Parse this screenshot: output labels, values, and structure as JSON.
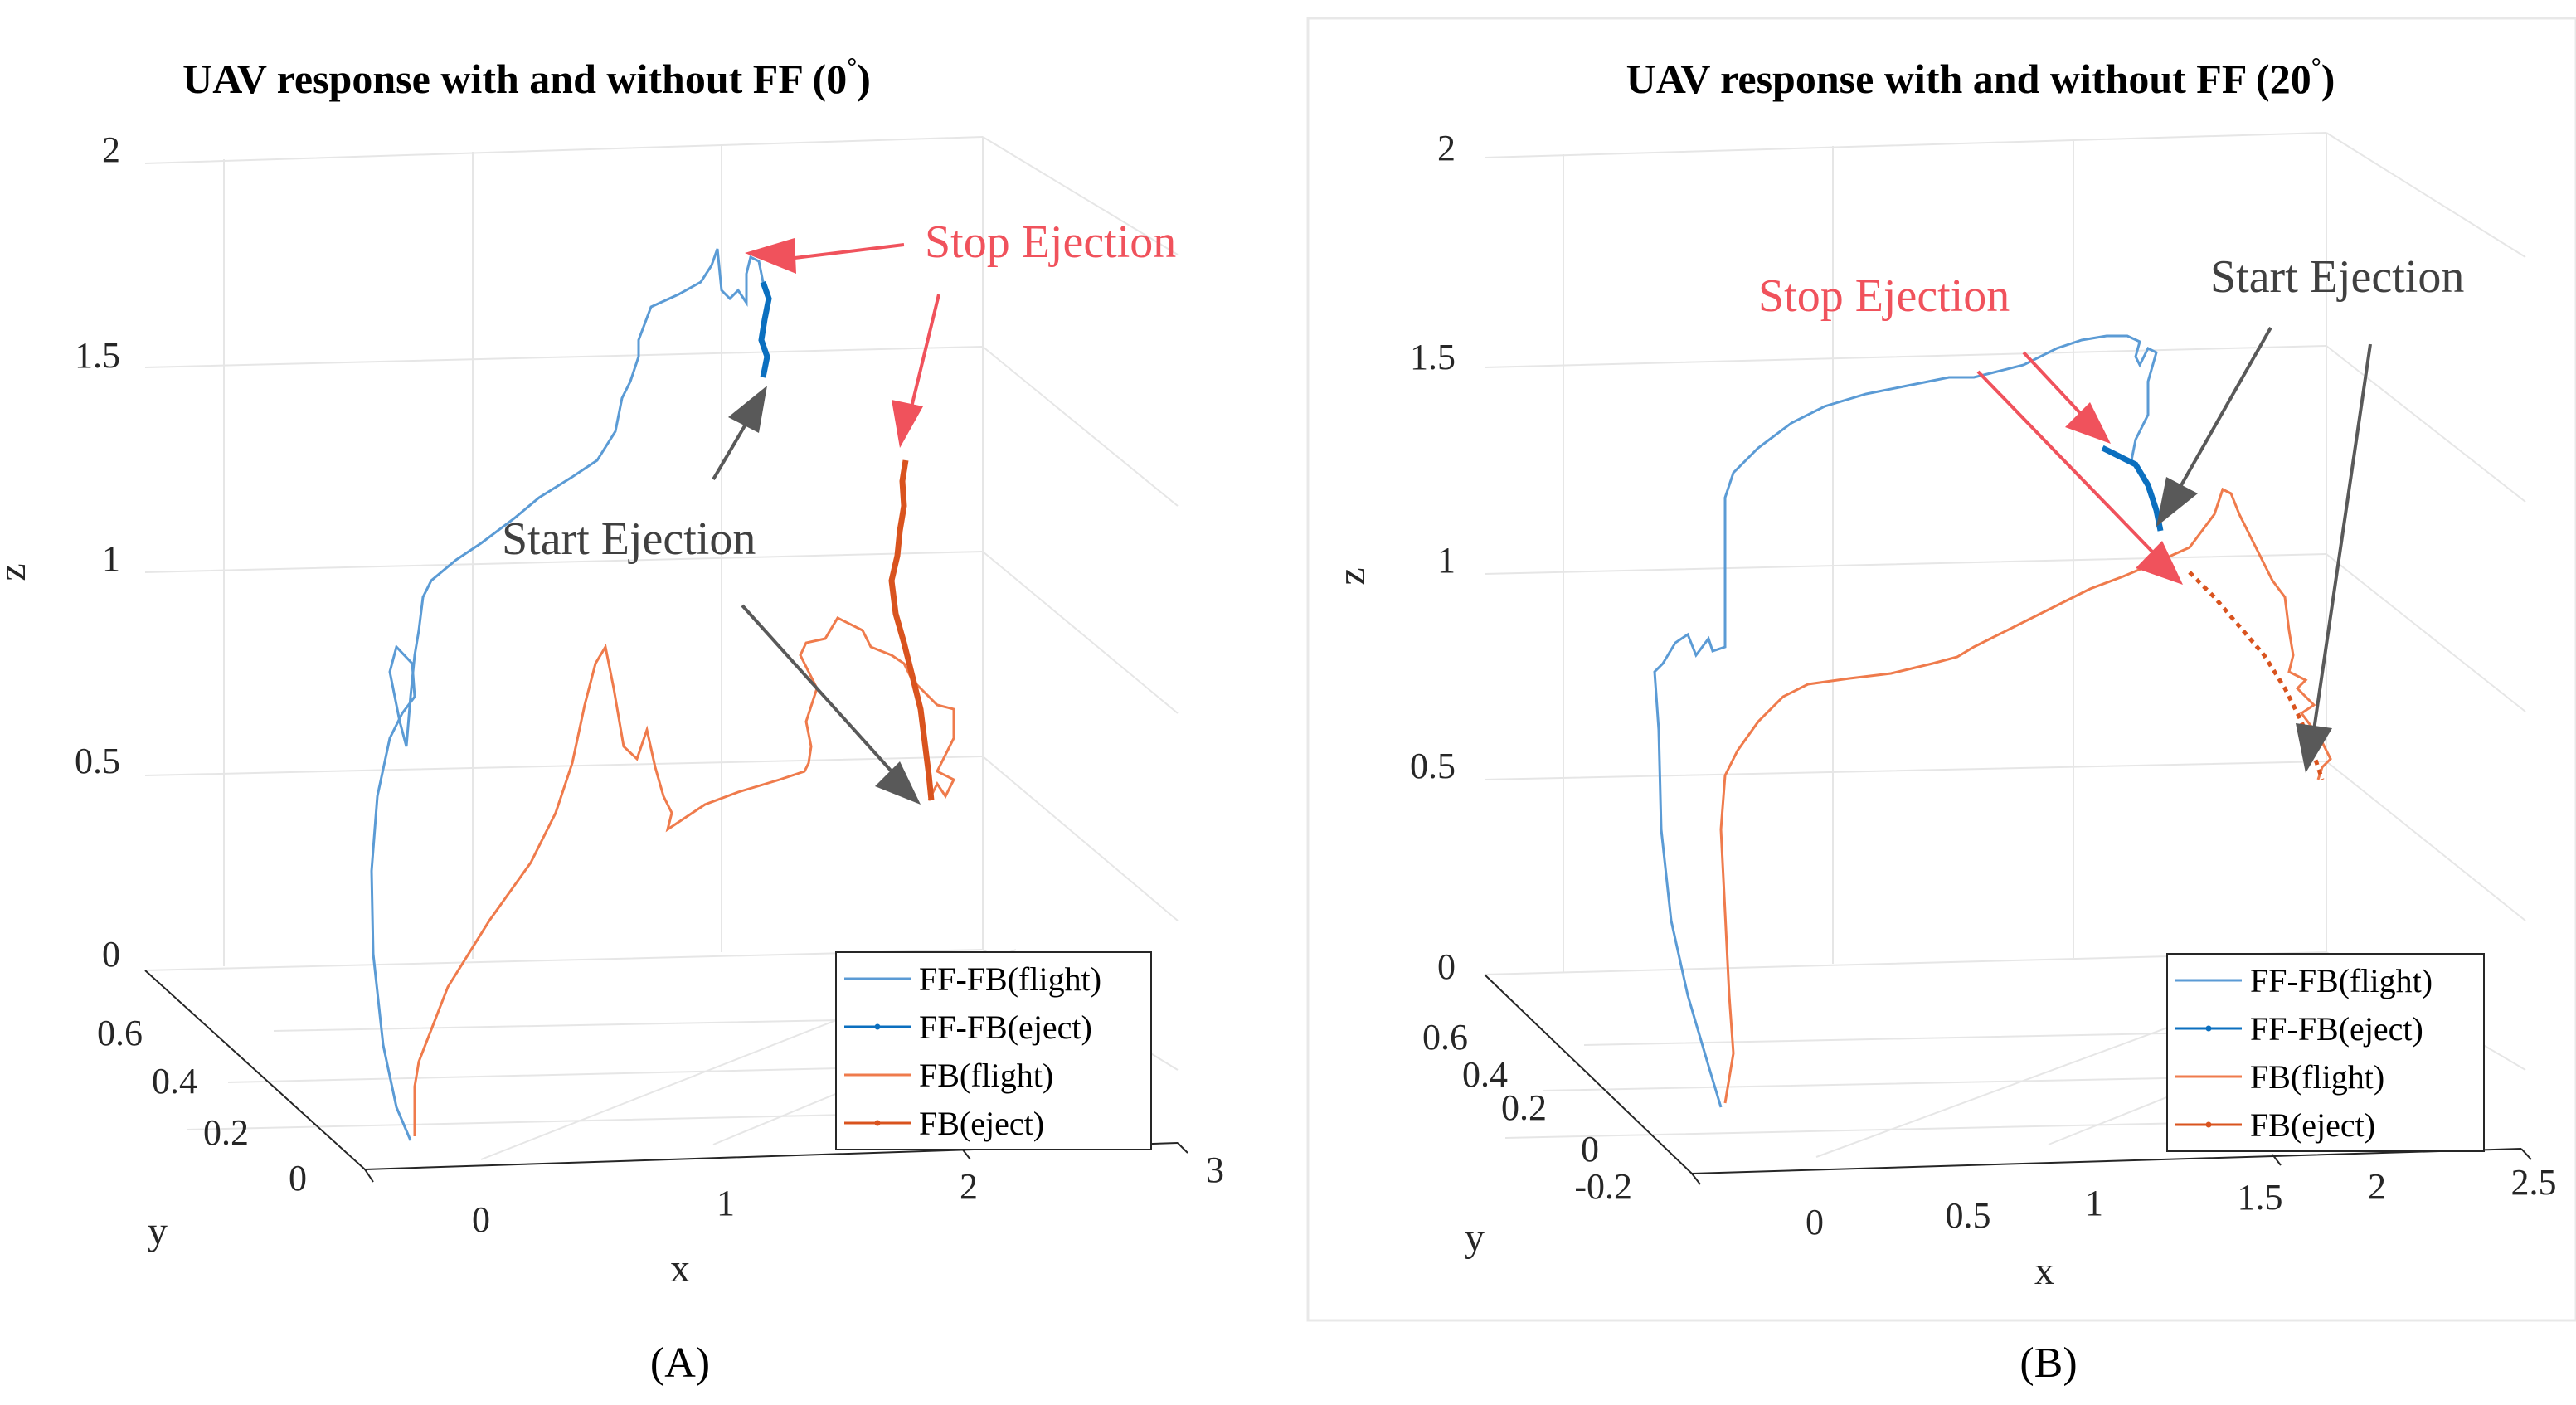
{
  "chart_data": [
    {
      "type": "line",
      "panel_label": "(A)",
      "title": "UAV response with and without FF (0°)",
      "title_main": "UAV response with and without FF (0",
      "title_sup": "°",
      "title_end": ")",
      "xlabel": "x",
      "ylabel": "y",
      "zlabel": "z",
      "xticks": [
        "0",
        "1",
        "2",
        "3"
      ],
      "yticks": [
        "0",
        "0.2",
        "0.4",
        "0.6"
      ],
      "zticks": [
        "0",
        "0.5",
        "1",
        "1.5",
        "2"
      ],
      "legend": [
        "FF-FB(flight)",
        "FF-FB(eject)",
        "FB(flight)",
        "FB(eject)"
      ],
      "annotations": {
        "stop": "Stop Ejection",
        "start": "Start Ejection"
      }
    },
    {
      "type": "line",
      "panel_label": "(B)",
      "title": "UAV response with and without FF (20°)",
      "title_main": "UAV response with and without FF (20",
      "title_sup": "°",
      "title_end": ")",
      "xlabel": "x",
      "ylabel": "y",
      "zlabel": "z",
      "xticks": [
        "0",
        "0.5",
        "1",
        "1.5",
        "2",
        "2.5"
      ],
      "yticks": [
        "-0.2",
        "0",
        "0.2",
        "0.4",
        "0.6"
      ],
      "zticks": [
        "0",
        "0.5",
        "1",
        "1.5",
        "2"
      ],
      "legend": [
        "FF-FB(flight)",
        "FF-FB(eject)",
        "FB(flight)",
        "FB(eject)"
      ],
      "annotations": {
        "stop": "Stop Ejection",
        "start": "Start Ejection"
      }
    }
  ],
  "colors": {
    "ff_fb_flight": "#5b9bd5",
    "ff_fb_eject": "#0b6fbf",
    "fb_flight": "#ef7b4c",
    "fb_eject": "#d9531e",
    "stop_arrow": "#f0525c",
    "start_arrow": "#595959"
  }
}
